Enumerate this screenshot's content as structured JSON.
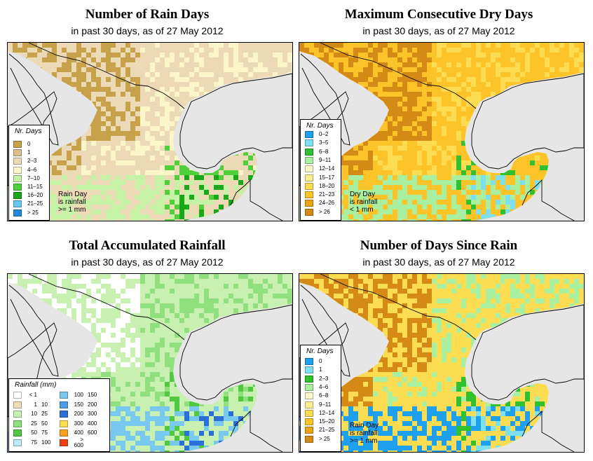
{
  "panels": [
    {
      "title": "Number of Rain Days",
      "subtitle": "in past 30 days, as of  27 May 2012",
      "legend": {
        "title": "Nr. Days",
        "items": [
          {
            "label": "0",
            "color": "#c8a14b"
          },
          {
            "label": "1",
            "color": "#dcbf8c"
          },
          {
            "label": "2–3",
            "color": "#ecd9b6"
          },
          {
            "label": "4–6",
            "color": "#fbf6c8"
          },
          {
            "label": "7–10",
            "color": "#c6f2a6"
          },
          {
            "label": "11–15",
            "color": "#4fcf3a"
          },
          {
            "label": "16–20",
            "color": "#1aa81a"
          },
          {
            "label": "21–25",
            "color": "#64c8f2"
          },
          {
            "label": "> 25",
            "color": "#2288d8"
          }
        ]
      },
      "note": [
        "Rain Day",
        "is rainfall",
        ">= 1 mm"
      ]
    },
    {
      "title": "Maximum Consecutive Dry Days",
      "subtitle": "in past 30 days, as of  27 May 2012",
      "legend": {
        "title": "Nr. Days",
        "items": [
          {
            "label": "0–2",
            "color": "#1ea0f0"
          },
          {
            "label": "3–5",
            "color": "#7ce0f0"
          },
          {
            "label": "6–8",
            "color": "#30c030"
          },
          {
            "label": "9–11",
            "color": "#a8f0a0"
          },
          {
            "label": "12–14",
            "color": "#fbf8c8"
          },
          {
            "label": "15–17",
            "color": "#fcec90"
          },
          {
            "label": "18–20",
            "color": "#fcdc50"
          },
          {
            "label": "21–23",
            "color": "#fcc428"
          },
          {
            "label": "24–26",
            "color": "#eca414"
          },
          {
            "label": "> 26",
            "color": "#d48a14"
          }
        ]
      },
      "note": [
        "Dry Day",
        "is rainfall",
        "< 1 mm"
      ]
    },
    {
      "title": "Total Accumulated Rainfall",
      "subtitle": "in past 30 days, as of  27 May 2012",
      "legend": {
        "title": "Rainfall (mm)",
        "items": [
          {
            "a": "< 1",
            "b": "",
            "color": "#ffffff"
          },
          {
            "a": "1",
            "b": "10",
            "color": "#f0dcb8"
          },
          {
            "a": "10",
            "b": "25",
            "color": "#c8f0b0"
          },
          {
            "a": "25",
            "b": "50",
            "color": "#90e080"
          },
          {
            "a": "50",
            "b": "75",
            "color": "#50c840"
          },
          {
            "a": "75",
            "b": "100",
            "color": "#b8ecf8"
          },
          {
            "a": "100",
            "b": "150",
            "color": "#78c8f0"
          },
          {
            "a": "150",
            "b": "200",
            "color": "#4a9ee8"
          },
          {
            "a": "200",
            "b": "300",
            "color": "#2a70d8"
          },
          {
            "a": "300",
            "b": "400",
            "color": "#fcdc50"
          },
          {
            "a": "400",
            "b": "600",
            "color": "#fca020"
          },
          {
            "a": "> 600",
            "b": "",
            "color": "#f04010"
          }
        ]
      }
    },
    {
      "title": "Number of Days Since Rain",
      "subtitle": "in past 30 days, as of  27 May 2012",
      "legend": {
        "title": "Nr. Days",
        "items": [
          {
            "label": "0",
            "color": "#1ea0f0"
          },
          {
            "label": "1",
            "color": "#7ce0f0"
          },
          {
            "label": "2–3",
            "color": "#30c030"
          },
          {
            "label": "4–6",
            "color": "#a8f0a0"
          },
          {
            "label": "6–8",
            "color": "#fbf8c8"
          },
          {
            "label": "9–11",
            "color": "#fcec90"
          },
          {
            "label": "12–14",
            "color": "#fcdc50"
          },
          {
            "label": "15–20",
            "color": "#fcc428"
          },
          {
            "label": "21–25",
            "color": "#eca414"
          },
          {
            "label": "> 25",
            "color": "#d48a14"
          }
        ]
      },
      "note": [
        "Rain Day",
        "is rainfall",
        ">= 1 mm"
      ]
    }
  ],
  "map_colors": {
    "water": "#e6e6e6",
    "outline": "#000000",
    "p1": {
      "base": "#ecd9b6",
      "north": "#c8a14b",
      "mid": "#fbf6c8",
      "south": "#c6f2a6",
      "accent": "#4fcf3a",
      "deep": "#1aa81a"
    },
    "p2": {
      "base": "#fcc428",
      "north": "#d48a14",
      "mid": "#fcdc50",
      "south": "#a8f0a0",
      "accent": "#30c030",
      "deep": "#7ce0f0"
    },
    "p3": {
      "base": "#c8f0b0",
      "north": "#ffffff",
      "mid": "#90e080",
      "south": "#78c8f0",
      "accent": "#50c840",
      "deep": "#2a70d8"
    },
    "p4": {
      "base": "#fcdc50",
      "north": "#d48a14",
      "mid": "#a8f0a0",
      "south": "#1ea0f0",
      "accent": "#30c030",
      "deep": "#7ce0f0"
    }
  }
}
